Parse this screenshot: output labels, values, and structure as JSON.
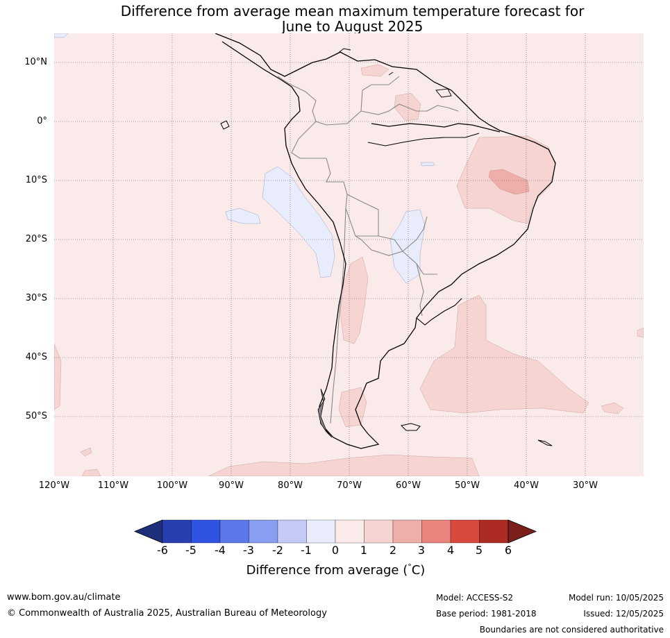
{
  "title_line1": "Difference from average mean maximum temperature forecast for",
  "title_line2": "June to August 2025",
  "map": {
    "lon_range": [
      -120,
      -20
    ],
    "lat_range": [
      -60,
      15
    ],
    "lat_labels": [
      "10°N",
      "0°",
      "10°S",
      "20°S",
      "30°S",
      "40°S",
      "50°S"
    ],
    "lon_labels": [
      "120°W",
      "110°W",
      "100°W",
      "90°W",
      "80°W",
      "70°W",
      "60°W",
      "50°W",
      "40°W",
      "30°W"
    ],
    "base_color": "#fbeaea",
    "anomaly_regions": [
      {
        "category": "1 to 2",
        "location": "northeast Brazil",
        "color": "#f5d4d2"
      },
      {
        "category": "2 to 3",
        "location": "northeast Brazil interior",
        "color": "#eeaeaa"
      },
      {
        "category": "1 to 2",
        "location": "South Atlantic off Argentina",
        "color": "#f5d4d2"
      },
      {
        "category": "-1 to 0",
        "location": "Pacific off Peru",
        "color": "#e9edfb"
      },
      {
        "category": "-1 to 0",
        "location": "Paraguay / Bolivia",
        "color": "#e9edfb"
      }
    ]
  },
  "colorbar": {
    "ticks": [
      "-6",
      "-5",
      "-4",
      "-3",
      "-2",
      "-1",
      "0",
      "1",
      "2",
      "3",
      "4",
      "5",
      "6"
    ],
    "colors": [
      "#1f2e7a",
      "#283fb0",
      "#2f52e0",
      "#5c78e8",
      "#889ef0",
      "#c2caf5",
      "#e9edfb",
      "#fbeaea",
      "#f5d4d2",
      "#eeaeaa",
      "#e8847c",
      "#d94a3e",
      "#ac2b22",
      "#7a1f1a"
    ],
    "label": "Difference from average (°C)",
    "label_prefix": "Difference from average (",
    "label_degree": "°",
    "label_unit": "C)"
  },
  "footer": {
    "url": "www.bom.gov.au/climate",
    "copyright": "© Commonwealth of Australia 2025, Australian Bureau of Meteorology",
    "model": "Model: ACCESS-S2",
    "base_period": "Base period: 1981-2018",
    "model_run": "Model run: 10/05/2025",
    "issued": "Issued: 12/05/2025",
    "disclaimer": "Boundaries are not considered authoritative"
  }
}
